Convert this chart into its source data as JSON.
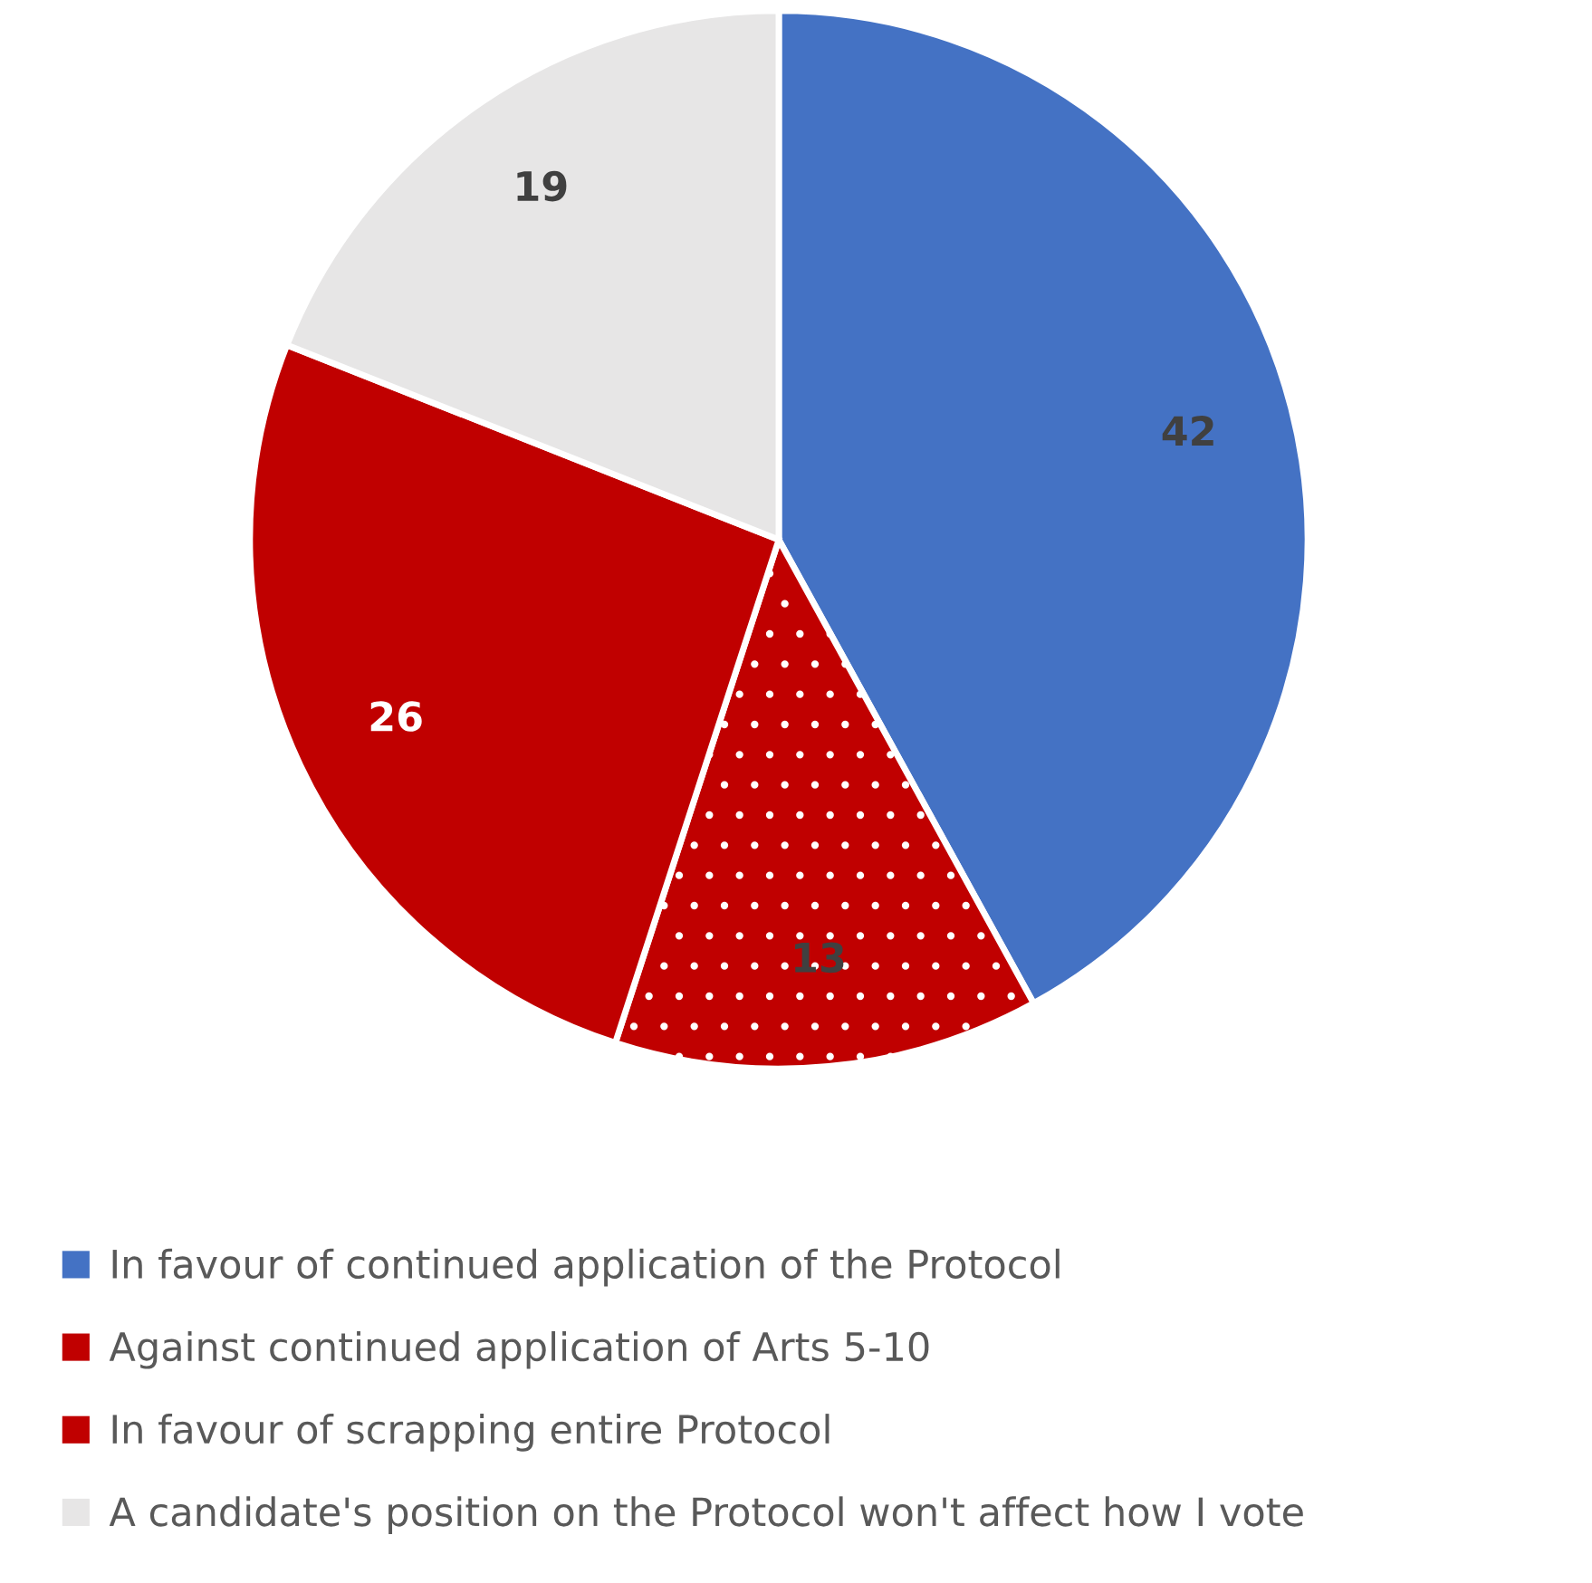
{
  "chart_data": {
    "type": "pie",
    "categories": [
      "In favour of continued application of the Protocol",
      "Against continued application of Arts 5-10",
      "In favour of scrapping entire Protocol",
      "A candidate's position on the Protocol won't affect how I vote"
    ],
    "values": [
      42,
      13,
      26,
      19
    ],
    "colors": [
      "#4472c4",
      "#c00000",
      "#c00000",
      "#e7e6e6"
    ],
    "data_labels": true,
    "legend": "bottom"
  }
}
